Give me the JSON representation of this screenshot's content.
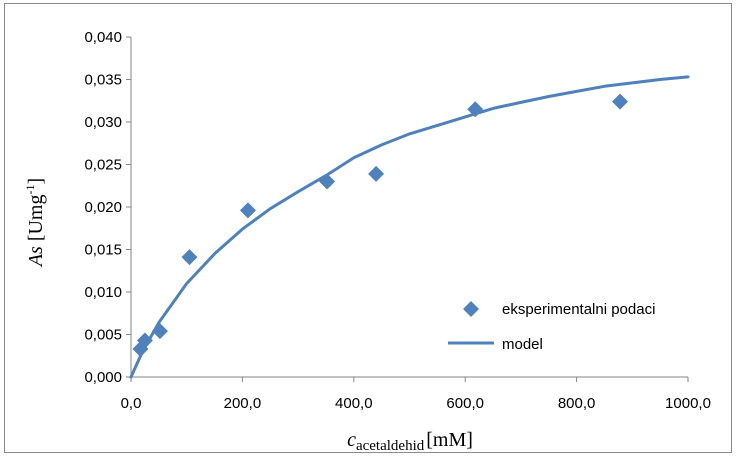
{
  "chart_data": {
    "type": "scatter",
    "xlabel": {
      "main": "c",
      "sub": "acetaldehid",
      "unit": "[mM]"
    },
    "ylabel": {
      "main": "As",
      "unit": "[Umg",
      "sup": "-1",
      "close": "]"
    },
    "xlim": [
      0,
      1000
    ],
    "ylim": [
      0,
      0.04
    ],
    "x_ticks": [
      "0,0",
      "200,0",
      "400,0",
      "600,0",
      "800,0",
      "1000,0"
    ],
    "y_ticks": [
      "0,000",
      "0,005",
      "0,010",
      "0,015",
      "0,020",
      "0,025",
      "0,030",
      "0,035",
      "0,040"
    ],
    "grid": false,
    "legend_position": "bottom-right",
    "series": [
      {
        "name": "eksperimentalni podaci",
        "marker": "diamond",
        "color": "#4f81bd",
        "points": [
          {
            "x": 17,
            "y": 0.0033
          },
          {
            "x": 25,
            "y": 0.0043
          },
          {
            "x": 52,
            "y": 0.0054
          },
          {
            "x": 105,
            "y": 0.0141
          },
          {
            "x": 210,
            "y": 0.0196
          },
          {
            "x": 352,
            "y": 0.023
          },
          {
            "x": 440,
            "y": 0.0239
          },
          {
            "x": 618,
            "y": 0.0315
          },
          {
            "x": 878,
            "y": 0.0324
          }
        ]
      },
      {
        "name": "model",
        "line": true,
        "color": "#4f81bd",
        "points": [
          {
            "x": 0,
            "y": 0.0
          },
          {
            "x": 20,
            "y": 0.0029
          },
          {
            "x": 50,
            "y": 0.0064
          },
          {
            "x": 100,
            "y": 0.011
          },
          {
            "x": 150,
            "y": 0.0145
          },
          {
            "x": 200,
            "y": 0.0174
          },
          {
            "x": 250,
            "y": 0.0198
          },
          {
            "x": 300,
            "y": 0.0218
          },
          {
            "x": 350,
            "y": 0.0237
          },
          {
            "x": 400,
            "y": 0.0258
          },
          {
            "x": 450,
            "y": 0.0273
          },
          {
            "x": 500,
            "y": 0.0286
          },
          {
            "x": 550,
            "y": 0.0296
          },
          {
            "x": 600,
            "y": 0.0306
          },
          {
            "x": 650,
            "y": 0.0316
          },
          {
            "x": 700,
            "y": 0.0323
          },
          {
            "x": 750,
            "y": 0.033
          },
          {
            "x": 800,
            "y": 0.0336
          },
          {
            "x": 850,
            "y": 0.0342
          },
          {
            "x": 900,
            "y": 0.0346
          },
          {
            "x": 950,
            "y": 0.035
          },
          {
            "x": 1000,
            "y": 0.0353
          }
        ]
      }
    ]
  }
}
